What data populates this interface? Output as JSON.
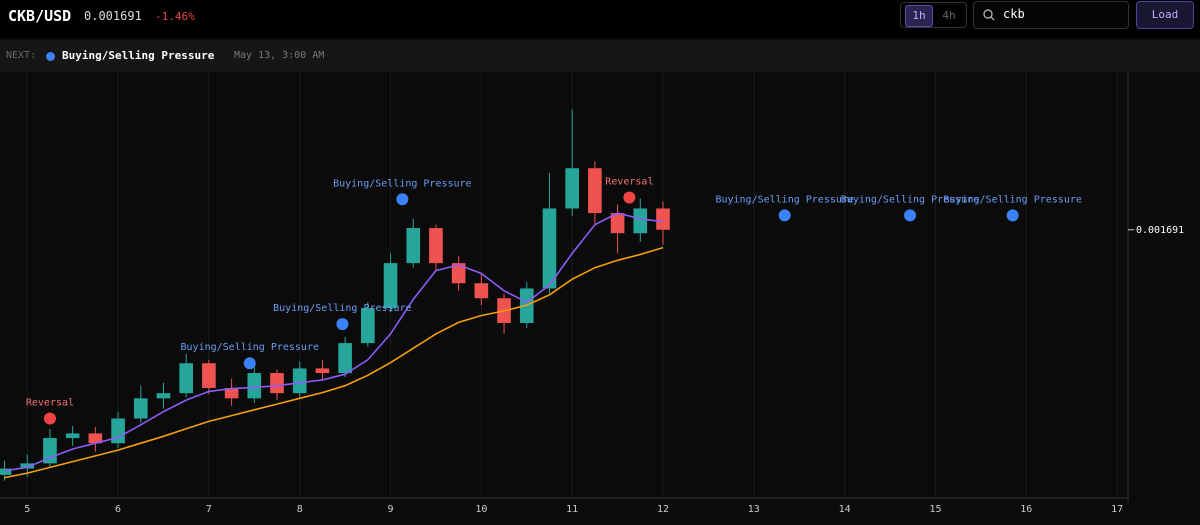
{
  "header": {
    "symbol": "CKB/USD",
    "price": "0.001691",
    "change": "-1.46%",
    "intervals": [
      "1h",
      "4h"
    ],
    "search": "ckb",
    "button": "Load"
  },
  "next": {
    "label": "NEXT:",
    "event": "Buying/Selling Pressure",
    "time": "May 13, 3:00 AM"
  },
  "chart": {
    "type": "candlestick",
    "up_color": "#26a69a",
    "down_color": "#ef5350",
    "x": [
      4.75,
      5.0,
      5.25,
      5.5,
      5.75,
      6.0,
      6.25,
      6.5,
      6.75,
      7.0,
      7.25,
      7.5,
      7.75,
      8.0,
      8.25,
      8.5,
      8.75,
      9.0,
      9.25,
      9.5,
      9.75,
      10.0,
      10.25,
      10.5,
      10.75,
      11.0,
      11.25,
      11.5,
      11.75,
      12.0
    ],
    "open": [
      0.001265,
      0.001276,
      0.001285,
      0.001329,
      0.001337,
      0.00132,
      0.001363,
      0.001398,
      0.001407,
      0.001459,
      0.001416,
      0.001398,
      0.001442,
      0.001407,
      0.00145,
      0.001442,
      0.001494,
      0.001555,
      0.001633,
      0.001694,
      0.001633,
      0.001598,
      0.001572,
      0.001529,
      0.001589,
      0.001728,
      0.001798,
      0.00172,
      0.001685,
      0.001728
    ],
    "high": [
      0.00129,
      0.0013,
      0.001345,
      0.00135,
      0.001348,
      0.001375,
      0.00142,
      0.001425,
      0.001475,
      0.001465,
      0.001432,
      0.001455,
      0.001448,
      0.001462,
      0.001465,
      0.001505,
      0.001565,
      0.00165,
      0.00171,
      0.0017,
      0.001645,
      0.001615,
      0.00158,
      0.0016,
      0.00179,
      0.0019,
      0.00181,
      0.001735,
      0.001745,
      0.00174
    ],
    "low": [
      0.001255,
      0.001262,
      0.001278,
      0.001315,
      0.001305,
      0.001312,
      0.001355,
      0.00138,
      0.0014,
      0.001405,
      0.001385,
      0.00139,
      0.001395,
      0.0014,
      0.00143,
      0.001435,
      0.001488,
      0.001548,
      0.001625,
      0.00162,
      0.001585,
      0.00156,
      0.00151,
      0.00152,
      0.00158,
      0.001715,
      0.0017,
      0.00165,
      0.00167,
      0.001665
    ],
    "close": [
      0.001276,
      0.001285,
      0.001329,
      0.001337,
      0.00132,
      0.001363,
      0.001398,
      0.001407,
      0.001459,
      0.001416,
      0.001398,
      0.001442,
      0.001407,
      0.00145,
      0.001442,
      0.001494,
      0.001555,
      0.001633,
      0.001694,
      0.001633,
      0.001598,
      0.001572,
      0.001529,
      0.001589,
      0.001728,
      0.001798,
      0.00172,
      0.001685,
      0.001728,
      0.001691
    ],
    "ma_fast": {
      "color": "#8b5cf6",
      "values": [
        0.001272,
        0.001278,
        0.001295,
        0.00131,
        0.00132,
        0.00133,
        0.001352,
        0.001375,
        0.001395,
        0.00141,
        0.001415,
        0.001417,
        0.00142,
        0.001425,
        0.00143,
        0.00144,
        0.001465,
        0.00151,
        0.00157,
        0.00162,
        0.00163,
        0.001615,
        0.001585,
        0.001565,
        0.001595,
        0.00165,
        0.0017,
        0.00172,
        0.00171,
        0.001705
      ]
    },
    "ma_slow": {
      "color": "#f59e0b",
      "values": [
        0.00126,
        0.001268,
        0.001278,
        0.001288,
        0.001298,
        0.001308,
        0.00132,
        0.001332,
        0.001345,
        0.001358,
        0.001368,
        0.001378,
        0.001388,
        0.001398,
        0.001408,
        0.00142,
        0.001438,
        0.00146,
        0.001485,
        0.00151,
        0.00153,
        0.001542,
        0.00155,
        0.00156,
        0.001578,
        0.001605,
        0.001625,
        0.001638,
        0.001648,
        0.00166
      ]
    },
    "signals": [
      {
        "label": "Reversal",
        "x": 5.25,
        "y": 0.001363,
        "color": "#ef4444"
      },
      {
        "label": "Buying/Selling Pressure",
        "x": 7.45,
        "y": 0.001459,
        "color": "#3b82f6"
      },
      {
        "label": "Buying/Selling Pressure",
        "x": 8.47,
        "y": 0.001527,
        "color": "#3b82f6"
      },
      {
        "label": "Buying/Selling Pressure",
        "x": 9.13,
        "y": 0.001744,
        "color": "#3b82f6"
      },
      {
        "label": "Reversal",
        "x": 11.63,
        "y": 0.001747,
        "color": "#ef4444"
      },
      {
        "label": "Buying/Selling Pressure",
        "x": 13.34,
        "y": 0.001716,
        "color": "#3b82f6"
      },
      {
        "label": "Buying/Selling Pressure",
        "x": 14.72,
        "y": 0.001716,
        "color": "#3b82f6"
      },
      {
        "label": "Buying/Selling Pressure",
        "x": 15.85,
        "y": 0.001716,
        "color": "#3b82f6"
      }
    ],
    "last_price": 0.001691,
    "xlim": [
      4.7,
      17.12
    ],
    "ylim": [
      0.00123,
      0.00196
    ],
    "xticks": [
      5,
      6,
      7,
      8,
      9,
      10,
      11,
      12,
      13,
      14,
      15,
      16,
      17
    ],
    "grid": true
  }
}
